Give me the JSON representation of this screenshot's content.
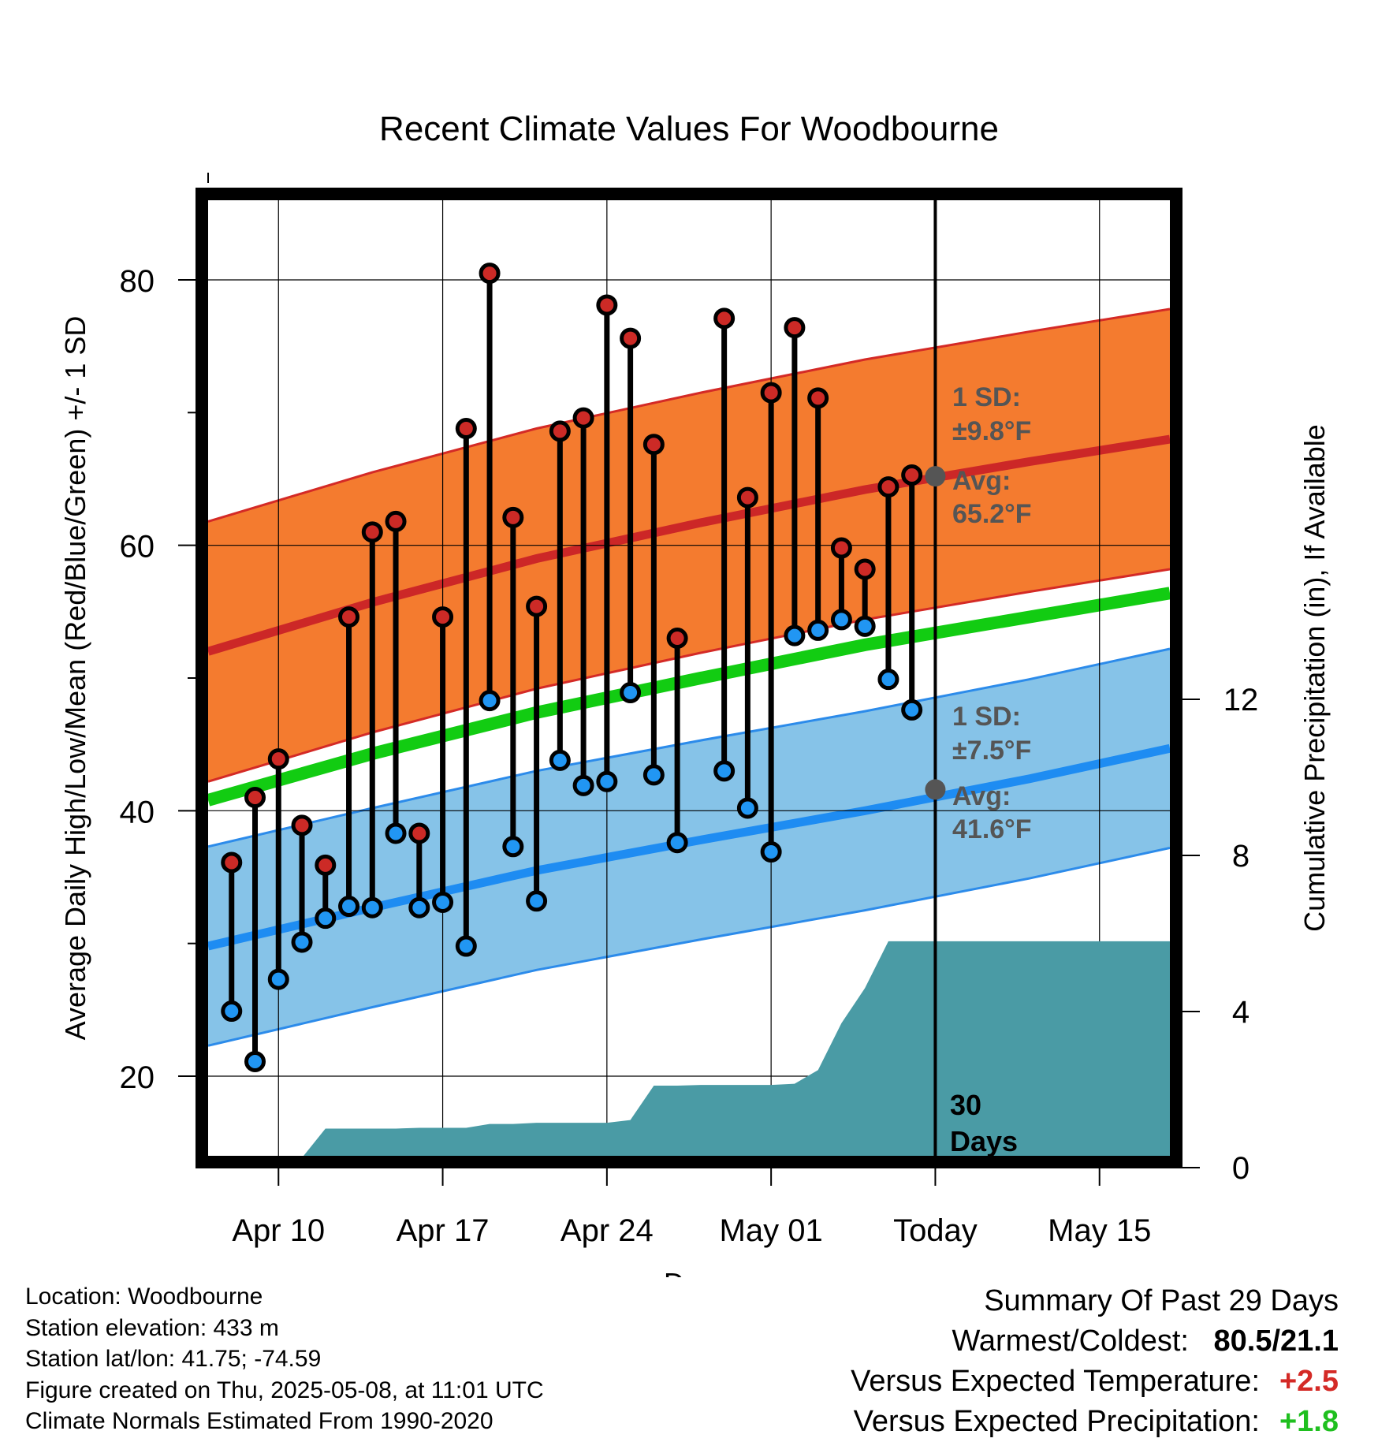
{
  "title": "Recent Climate Values For Woodbourne",
  "colors": {
    "high_band": "#f47b2f",
    "high_edge": "#d42a26",
    "high_mean": "#cc2727",
    "low_band": "#86c3e8",
    "low_edge": "#2c8bea",
    "low_mean": "#1e8cf2",
    "mean_line": "#12cc12",
    "precip": "#4a9ba5",
    "high_dot": "#cc2a26",
    "low_dot": "#2196f3",
    "annotation": "#555555",
    "vs_temp": "#d42a26",
    "vs_precip": "#1fbf1f"
  },
  "chart_data": {
    "type": "line",
    "title": "Recent Climate Values For Woodbourne",
    "xlabel": "Day",
    "ylabel": "Average Daily High/Low/Mean (Red/Blue/Green) +/- 1 SD",
    "y2label": "Cumulative Precipitation (in), If Available",
    "xlim": [
      "2025-04-07",
      "2025-05-18"
    ],
    "ylim": [
      14,
      86
    ],
    "y2lim": [
      0,
      28
    ],
    "x_ticks": [
      {
        "date": "2025-04-10",
        "label": "Apr 10"
      },
      {
        "date": "2025-04-17",
        "label": "Apr 17"
      },
      {
        "date": "2025-04-24",
        "label": "Apr 24"
      },
      {
        "date": "2025-05-01",
        "label": "May 01"
      },
      {
        "date": "2025-05-08",
        "label": "Today"
      },
      {
        "date": "2025-05-15",
        "label": "May 15"
      }
    ],
    "y_ticks": [
      20,
      40,
      60,
      80
    ],
    "y_minor_ticks": [
      30,
      50,
      70
    ],
    "y2_ticks": [
      0,
      4,
      8,
      12
    ],
    "grid": true,
    "today": "2025-05-08",
    "normals": {
      "dates": [
        "2025-04-07",
        "2025-04-14",
        "2025-04-21",
        "2025-04-28",
        "2025-05-05",
        "2025-05-12",
        "2025-05-18"
      ],
      "avg_high": [
        52.0,
        55.7,
        59.0,
        61.7,
        64.2,
        66.3,
        68.0
      ],
      "avg_low": [
        29.8,
        32.7,
        35.5,
        37.8,
        40.0,
        42.4,
        44.7
      ],
      "avg_mean": [
        40.8,
        44.3,
        47.4,
        50.0,
        52.5,
        54.6,
        56.4
      ],
      "high_sd": 9.8,
      "low_sd": 7.5
    },
    "series": [
      {
        "name": "High",
        "dates": [
          "2025-04-08",
          "2025-04-09",
          "2025-04-10",
          "2025-04-11",
          "2025-04-12",
          "2025-04-13",
          "2025-04-14",
          "2025-04-15",
          "2025-04-16",
          "2025-04-17",
          "2025-04-18",
          "2025-04-19",
          "2025-04-20",
          "2025-04-21",
          "2025-04-22",
          "2025-04-23",
          "2025-04-24",
          "2025-04-25",
          "2025-04-26",
          "2025-04-27",
          "2025-04-29",
          "2025-04-30",
          "2025-05-01",
          "2025-05-02",
          "2025-05-03",
          "2025-05-04",
          "2025-05-05",
          "2025-05-06",
          "2025-05-07"
        ],
        "values": [
          36.1,
          41.0,
          43.9,
          38.9,
          35.9,
          54.6,
          61.0,
          61.8,
          38.3,
          54.6,
          68.8,
          80.5,
          62.1,
          55.4,
          68.6,
          69.6,
          78.1,
          75.6,
          67.6,
          53.0,
          77.1,
          63.6,
          71.5,
          76.4,
          71.1,
          59.8,
          58.2,
          64.4,
          65.3
        ]
      },
      {
        "name": "Low",
        "dates": [
          "2025-04-08",
          "2025-04-09",
          "2025-04-10",
          "2025-04-11",
          "2025-04-12",
          "2025-04-13",
          "2025-04-14",
          "2025-04-15",
          "2025-04-16",
          "2025-04-17",
          "2025-04-18",
          "2025-04-19",
          "2025-04-20",
          "2025-04-21",
          "2025-04-22",
          "2025-04-23",
          "2025-04-24",
          "2025-04-25",
          "2025-04-26",
          "2025-04-27",
          "2025-04-29",
          "2025-04-30",
          "2025-05-01",
          "2025-05-02",
          "2025-05-03",
          "2025-05-04",
          "2025-05-05",
          "2025-05-06",
          "2025-05-07"
        ],
        "values": [
          24.9,
          21.1,
          27.3,
          30.1,
          31.9,
          32.8,
          32.7,
          38.3,
          32.7,
          33.1,
          29.8,
          48.3,
          37.3,
          33.2,
          43.8,
          41.9,
          42.2,
          48.9,
          42.7,
          37.6,
          43.0,
          40.2,
          36.9,
          53.2,
          53.6,
          54.4,
          53.9,
          49.9,
          47.6
        ]
      },
      {
        "name": "Cumulative Precipitation",
        "dates": [
          "2025-04-08",
          "2025-04-09",
          "2025-04-10",
          "2025-04-11",
          "2025-04-12",
          "2025-04-13",
          "2025-04-14",
          "2025-04-15",
          "2025-04-16",
          "2025-04-17",
          "2025-04-18",
          "2025-04-19",
          "2025-04-20",
          "2025-04-21",
          "2025-04-22",
          "2025-04-23",
          "2025-04-24",
          "2025-04-25",
          "2025-04-26",
          "2025-04-27",
          "2025-04-28",
          "2025-04-29",
          "2025-04-30",
          "2025-05-01",
          "2025-05-02",
          "2025-05-03",
          "2025-05-04",
          "2025-05-05",
          "2025-05-06",
          "2025-05-07",
          "2025-05-18"
        ],
        "values": [
          0.0,
          0.0,
          0.0,
          0.25,
          1.0,
          1.0,
          1.0,
          1.0,
          1.02,
          1.02,
          1.02,
          1.12,
          1.12,
          1.15,
          1.15,
          1.15,
          1.15,
          1.22,
          2.1,
          2.1,
          2.12,
          2.12,
          2.12,
          2.12,
          2.15,
          2.5,
          3.7,
          4.6,
          5.8,
          5.8,
          5.8
        ]
      }
    ]
  },
  "annotations": {
    "high_sd_label": "1 SD:",
    "high_sd_value": "±9.8°F",
    "high_avg_label": "Avg:",
    "high_avg_value": "65.2°F",
    "low_sd_label": "1 SD:",
    "low_sd_value": "±7.5°F",
    "low_avg_label": "Avg:",
    "low_avg_value": "41.6°F",
    "days_number": "30",
    "days_word": "Days"
  },
  "footer": {
    "location": "Location: Woodbourne",
    "elevation": "Station elevation: 433 m",
    "latlon": "Station lat/lon: 41.75; -74.59",
    "created": "Figure created on Thu, 2025-05-08, at 11:01 UTC",
    "normals": "Climate Normals Estimated From 1990-2020"
  },
  "summary": {
    "heading": "Summary Of Past 29 Days",
    "warmest_label": "Warmest/Coldest:",
    "warmest_value": "80.5/21.1",
    "temp_label": "Versus Expected Temperature:",
    "temp_value": "+2.5",
    "precip_label": "Versus Expected Precipitation:",
    "precip_value": "+1.8"
  }
}
